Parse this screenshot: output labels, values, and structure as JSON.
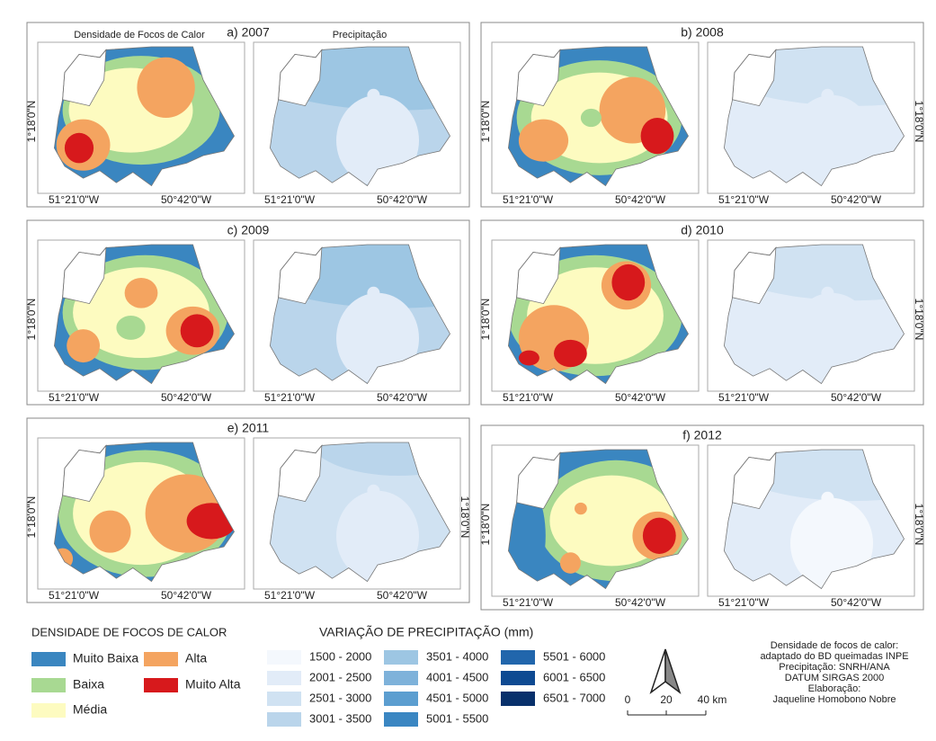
{
  "panels": [
    {
      "title": "a) 2007",
      "map_titles": [
        "Densidade de Focos de Calor",
        "Precipitação"
      ],
      "lon_labels": [
        "51°21'0\"W",
        "50°42'0\"W",
        "51°21'0\"W",
        "50°42'0\"W"
      ],
      "lat_labels": [
        "1°18'0\"N"
      ]
    },
    {
      "title": "b) 2008",
      "lon_labels": [
        "51°21'0\"W",
        "50°42'0\"W",
        "51°21'0\"W",
        "50°42'0\"W"
      ],
      "lat_labels": [
        "1°18'0\"N",
        "1°18'0\"N"
      ]
    },
    {
      "title": "c) 2009",
      "lon_labels": [
        "51°21'0\"W",
        "50°42'0\"W",
        "51°21'0\"W",
        "50°42'0\"W"
      ],
      "lat_labels": [
        "1°18'0\"N"
      ]
    },
    {
      "title": "d) 2010",
      "lon_labels": [
        "51°21'0\"W",
        "50°42'0\"W",
        "51°21'0\"W",
        "50°42'0\"W"
      ],
      "lat_labels": [
        "1°18'0\"N",
        "1°18'0\"N"
      ]
    },
    {
      "title": "e) 2011",
      "lon_labels": [
        "51°21'0\"W",
        "50°42'0\"W",
        "51°21'0\"W",
        "50°42'0\"W"
      ],
      "lat_labels": [
        "1°18'0\"N",
        "1°18'0\"N"
      ]
    },
    {
      "title": "f) 2012",
      "lon_labels": [
        "51°21'0\"W",
        "50°42'0\"W",
        "51°21'0\"W",
        "50°42'0\"W"
      ],
      "lat_labels": [
        "1°18'0\"N",
        "1°18'0\"N"
      ]
    }
  ],
  "density_legend": {
    "title": "DENSIDADE DE FOCOS DE CALOR",
    "items": [
      {
        "label": "Muito Baixa",
        "color": "#3a86c0"
      },
      {
        "label": "Baixa",
        "color": "#a8d992"
      },
      {
        "label": "Média",
        "color": "#fdfbc0"
      },
      {
        "label": "Alta",
        "color": "#f4a460"
      },
      {
        "label": "Muito Alta",
        "color": "#d7191c"
      }
    ]
  },
  "precipitation_legend": {
    "title": "VARIAÇÃO DE PRECIPITAÇÃO (mm)",
    "items": [
      {
        "label": "1500 - 2000",
        "color": "#f4f8fd"
      },
      {
        "label": "2001 - 2500",
        "color": "#e2ecf8"
      },
      {
        "label": "2501 - 3000",
        "color": "#d0e2f2"
      },
      {
        "label": "3001 - 3500",
        "color": "#bad5eb"
      },
      {
        "label": "3501 - 4000",
        "color": "#9dc6e3"
      },
      {
        "label": "4001 - 4500",
        "color": "#7eb2da"
      },
      {
        "label": "4501 - 5000",
        "color": "#5c9ed0"
      },
      {
        "label": "5001 - 5500",
        "color": "#3a86c2"
      },
      {
        "label": "5501 - 6000",
        "color": "#2166ac"
      },
      {
        "label": "6001 - 6500",
        "color": "#0e4a92"
      },
      {
        "label": "6501 - 7000",
        "color": "#08306b"
      }
    ]
  },
  "scale_bar": {
    "labels": [
      "0",
      "20",
      "40 km"
    ]
  },
  "credits": [
    "Densidade de focos de calor:",
    "adaptado do BD queimadas INPE",
    "Precipitação: SNRH/ANA",
    "DATUM SIRGAS 2000",
    "Elaboração:",
    "Jaqueline Homobono Nobre"
  ]
}
